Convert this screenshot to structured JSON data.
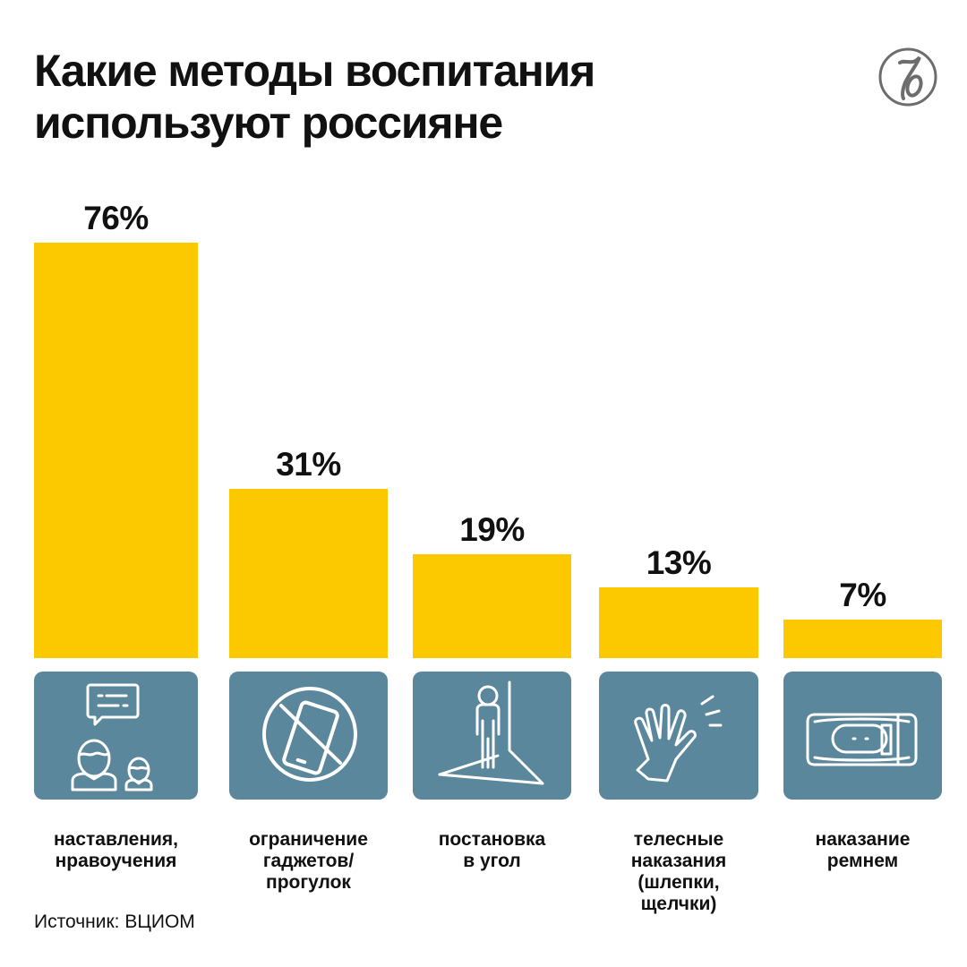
{
  "chart_data": {
    "type": "bar",
    "title": [
      "Какие методы воспитания",
      "используют россияне"
    ],
    "categories": [
      [
        "наставления,",
        "нравоучения"
      ],
      [
        "ограничение",
        "гаджетов/",
        "прогулок"
      ],
      [
        "постановка",
        "в угол"
      ],
      [
        "телесные",
        "наказания",
        "(шлепки,",
        "щелчки)"
      ],
      [
        "наказание",
        "ремнем"
      ]
    ],
    "values": [
      76,
      31,
      19,
      13,
      7
    ],
    "value_labels": [
      "76%",
      "31%",
      "19%",
      "13%",
      "7%"
    ],
    "unit": "%",
    "ylim": [
      0,
      76
    ],
    "grid": false,
    "icons": [
      "parent-child-talk-icon",
      "no-phone-icon",
      "corner-standing-icon",
      "slapping-hand-icon",
      "belt-icon"
    ],
    "source": "Источник: ВЦИОМ"
  },
  "colors": {
    "bar": "#fcc800",
    "icon_box": "#5a879c",
    "logo": "#6d6d6d"
  }
}
